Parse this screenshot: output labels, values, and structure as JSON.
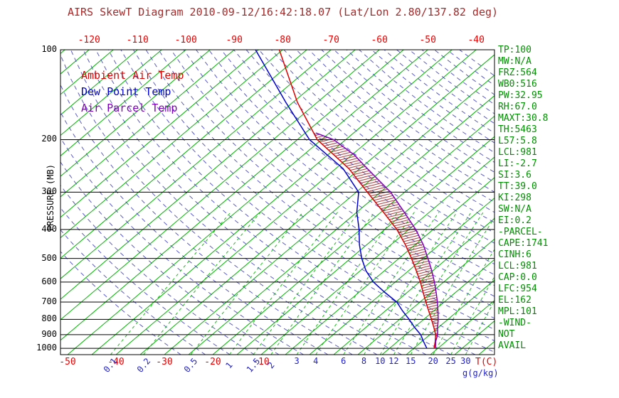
{
  "title": "AIRS SkewT Diagram 2010-09-12/16:42:18.07 (Lat/Lon 2.80/137.82 deg)",
  "legend": {
    "ambient": "Ambient Air Temp",
    "dewpoint": "Dew Point Temp",
    "parcel": "Air Parcel Temp"
  },
  "axes": {
    "pressure_label": "PRESSURE (MB)",
    "temp_unit": "T(C)",
    "mixing_ratio_unit": "g(g/kg)",
    "pressure_ticks_mb": [
      100,
      200,
      300,
      400,
      500,
      600,
      700,
      800,
      900,
      1000
    ],
    "top_temp_ticks_c": [
      -120,
      -110,
      -100,
      -90,
      -80,
      -70,
      -60,
      -50,
      -40
    ],
    "bottom_temp_ticks_c": [
      -50,
      -40,
      -30,
      -20,
      -10
    ]
  },
  "stats_panel": [
    "TP:100",
    "MW:N/A",
    "FRZ:564",
    "WB0:516",
    "PW:32.95",
    "RH:67.0",
    "MAXT:30.8",
    "TH:5463",
    "L57:5.8",
    "LCL:981",
    "LI:-2.7",
    "SI:3.6",
    "TT:39.0",
    "KI:298",
    "SW:N/A",
    "EI:0.2",
    "-PARCEL-",
    "CAPE:1741",
    "CINH:6",
    "LCL:981",
    "CAP:0.0",
    "LFC:954",
    "EL:162",
    "MPL:101",
    "-WIND-",
    "NOT",
    "AVAIL"
  ],
  "colors": {
    "title": "#a52a2a",
    "temp_axis_labels": "#e80000",
    "mixing_ratio_labels": "#2222cc",
    "pressure_labels": "#000000",
    "stats_text": "#008f00",
    "isotherm": "#00b400",
    "dry_adiabat": "#4040b8",
    "mixing_line": "#00b400",
    "ambient_curve": "#dd0000",
    "dewpoint_curve": "#0000cd",
    "parcel_curve": "#8000c0",
    "cape_hatch": "#a02020",
    "frame": "#000000"
  },
  "chart_data": {
    "type": "skewt",
    "pressure_axis_mb": {
      "top": 100,
      "bottom": 1050,
      "scale": "log"
    },
    "isotherm_range_c": [
      -160,
      45
    ],
    "isotherm_step_c": 5,
    "dry_adiabats_theta_range_c": [
      -30,
      170
    ],
    "dry_adiabat_step_c": 5,
    "mixing_ratio_lines_g_kg": [
      0.1,
      0.2,
      0.5,
      1,
      1.5,
      2,
      3,
      4,
      6,
      8,
      10,
      12,
      15,
      20,
      25,
      30
    ],
    "series": [
      {
        "name": "Ambient Air Temp",
        "color": "#dd0000",
        "points_p_t": [
          [
            1000,
            24.2
          ],
          [
            950,
            22.8
          ],
          [
            900,
            21.2
          ],
          [
            850,
            19.0
          ],
          [
            800,
            16.6
          ],
          [
            750,
            14.0
          ],
          [
            700,
            11.2
          ],
          [
            650,
            8.3
          ],
          [
            600,
            5.2
          ],
          [
            550,
            1.6
          ],
          [
            500,
            -2.4
          ],
          [
            450,
            -7.0
          ],
          [
            400,
            -12.5
          ],
          [
            350,
            -19.5
          ],
          [
            300,
            -27.7
          ],
          [
            250,
            -37.3
          ],
          [
            200,
            -50.9
          ],
          [
            150,
            -64.1
          ],
          [
            100,
            -80.7
          ]
        ]
      },
      {
        "name": "Dew Point Temp",
        "color": "#0000cd",
        "points_p_t": [
          [
            1000,
            22.7
          ],
          [
            950,
            20.4
          ],
          [
            900,
            18.1
          ],
          [
            850,
            15.0
          ],
          [
            800,
            12.0
          ],
          [
            750,
            8.6
          ],
          [
            700,
            5.2
          ],
          [
            650,
            0.4
          ],
          [
            600,
            -4.5
          ],
          [
            550,
            -8.8
          ],
          [
            500,
            -12.7
          ],
          [
            450,
            -16.5
          ],
          [
            400,
            -20.3
          ],
          [
            350,
            -25.0
          ],
          [
            300,
            -29.5
          ],
          [
            250,
            -38.5
          ],
          [
            200,
            -52.5
          ],
          [
            150,
            -66.5
          ],
          [
            100,
            -85.6
          ]
        ]
      },
      {
        "name": "Air Parcel Temp",
        "color": "#8000c0",
        "points_p_t": [
          [
            1000,
            24.5
          ],
          [
            981,
            23.9
          ],
          [
            950,
            22.9
          ],
          [
            900,
            21.6
          ],
          [
            850,
            19.8
          ],
          [
            800,
            18.0
          ],
          [
            750,
            15.9
          ],
          [
            700,
            13.6
          ],
          [
            650,
            11.0
          ],
          [
            600,
            8.1
          ],
          [
            550,
            4.8
          ],
          [
            500,
            1.0
          ],
          [
            450,
            -3.3
          ],
          [
            400,
            -8.6
          ],
          [
            350,
            -15.2
          ],
          [
            300,
            -22.9
          ],
          [
            250,
            -33.5
          ],
          [
            225,
            -39.5
          ],
          [
            200,
            -47.5
          ],
          [
            190,
            -52.8
          ]
        ]
      }
    ],
    "cape_hatch": {
      "between": [
        "Ambient Air Temp",
        "Air Parcel Temp"
      ],
      "p_from_mb": 950,
      "p_to_mb": 190,
      "color": "#a02020"
    }
  }
}
